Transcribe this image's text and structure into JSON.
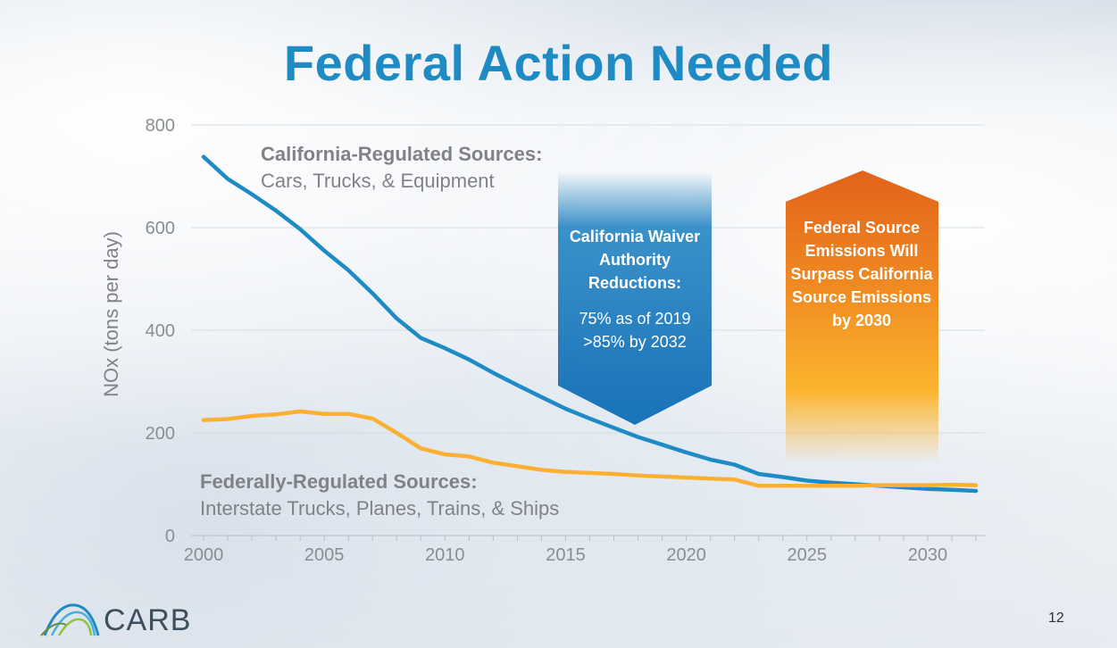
{
  "slide": {
    "title": "Federal Action Needed",
    "page_number": "12",
    "logo_text": "CARB"
  },
  "callouts": {
    "california": {
      "heading": "California Waiver Authority Reductions:",
      "line1": "75% as of 2019",
      "line2": ">85% by 2032",
      "color": "#1a7fc0"
    },
    "federal": {
      "text": "Federal Source Emissions Will Surpass California Source Emissions by 2030",
      "color": "#ee7a1b"
    }
  },
  "series_labels": {
    "california": {
      "bold": "California-Regulated Sources:",
      "plain": "Cars, Trucks, & Equipment"
    },
    "federal": {
      "bold": "Federally-Regulated Sources:",
      "plain": "Interstate Trucks, Planes, Trains, & Ships"
    }
  },
  "chart_data": {
    "type": "line",
    "title": "Federal Action Needed",
    "xlabel": "",
    "ylabel": "NOx (tons per day)",
    "xlim": [
      2000,
      2032
    ],
    "ylim": [
      0,
      800
    ],
    "xticks": [
      "2000",
      "2005",
      "2010",
      "2015",
      "2020",
      "2025",
      "2030"
    ],
    "yticks": [
      "0",
      "200",
      "400",
      "600",
      "800"
    ],
    "grid": true,
    "x": [
      2000,
      2001,
      2002,
      2003,
      2004,
      2005,
      2006,
      2007,
      2008,
      2009,
      2010,
      2011,
      2012,
      2013,
      2014,
      2015,
      2016,
      2017,
      2018,
      2019,
      2020,
      2021,
      2022,
      2023,
      2024,
      2025,
      2026,
      2027,
      2028,
      2029,
      2030,
      2031,
      2032
    ],
    "series": [
      {
        "name": "California-Regulated Sources",
        "color": "#1f8bc4",
        "values": [
          738,
          695,
          665,
          633,
          597,
          555,
          517,
          472,
          423,
          385,
          365,
          343,
          317,
          293,
          270,
          247,
          228,
          210,
          192,
          177,
          162,
          148,
          138,
          120,
          114,
          107,
          103,
          100,
          97,
          94,
          91,
          89,
          87
        ]
      },
      {
        "name": "Federally-Regulated Sources",
        "color": "#fbb034",
        "values": [
          225,
          227,
          233,
          236,
          242,
          237,
          237,
          228,
          200,
          170,
          158,
          154,
          142,
          135,
          128,
          124,
          122,
          120,
          117,
          115,
          113,
          111,
          109,
          97,
          97,
          97,
          97,
          97,
          98,
          98,
          98,
          99,
          98
        ]
      }
    ]
  }
}
